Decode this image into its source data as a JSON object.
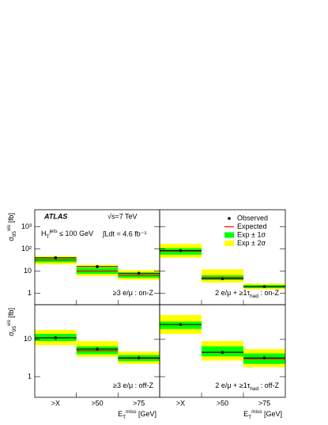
{
  "chart_data": [
    {
      "type": "band",
      "log_y": true,
      "ylim": [
        0.3,
        6000
      ],
      "yticks": [
        1,
        10,
        {
          "value": 100,
          "label": "10²"
        },
        {
          "value": 1000,
          "label": "10³"
        }
      ],
      "y_label": {
        "pre": "σ",
        "sub": "95",
        "sup": "vis",
        "post": " [fb]"
      },
      "experiment": "ATLAS",
      "energy": "√s=7 TeV",
      "lumi": "∫Ldt = 4.6 fb⁻¹",
      "selection": {
        "pre": "H",
        "sub": "T",
        "sup": "jets",
        "post": " ≤ 100 GeV"
      },
      "label": {
        "pre": "≥3 e/μ : on-Z"
      },
      "observed": [
        40,
        16,
        8
      ],
      "expected": [
        32,
        10,
        6.5
      ],
      "band_1sigma": [
        [
          25,
          40
        ],
        [
          7.5,
          14
        ],
        [
          5,
          8.5
        ]
      ],
      "band_2sigma": [
        [
          20,
          48
        ],
        [
          6,
          19
        ],
        [
          4,
          11
        ]
      ]
    },
    {
      "type": "band",
      "log_y": true,
      "ylim": [
        0.3,
        6000
      ],
      "label": {
        "pre": "2 e/μ + ≥1τ",
        "sub": "had",
        "post": " : on-Z"
      },
      "legend_position": "upper right",
      "legend": [
        {
          "name": "Observed",
          "color": "#000000"
        },
        {
          "name": "Expected",
          "color": "#ff0000"
        },
        {
          "name": "Exp ± 1σ",
          "color": "#00ff00"
        },
        {
          "name": "Exp ± 2σ",
          "color": "#ffff00"
        }
      ],
      "observed": [
        85,
        4.5,
        2
      ],
      "expected": [
        80,
        5,
        2
      ],
      "band_1sigma": [
        [
          55,
          110
        ],
        [
          4,
          6.5
        ],
        [
          1.7,
          2.3
        ]
      ],
      "band_2sigma": [
        [
          40,
          170
        ],
        [
          3,
          12
        ],
        [
          1.5,
          2.7
        ]
      ]
    },
    {
      "type": "band",
      "log_y": true,
      "ylim": [
        0.28,
        85
      ],
      "yticks": [
        1,
        10
      ],
      "y_label": {
        "pre": "σ",
        "sub": "95",
        "sup": "vis",
        "post": " [fb]"
      },
      "label": {
        "pre": "≥3 e/μ : off-Z"
      },
      "categories": [
        ">X",
        ">50",
        ">75"
      ],
      "x_label": {
        "pre": "E",
        "sub": "T",
        "sup": "miss",
        "post": " [GeV]"
      },
      "observed": [
        11,
        5.5,
        3.2
      ],
      "expected": [
        11,
        5,
        3.1
      ],
      "band_1sigma": [
        [
          9,
          14
        ],
        [
          4,
          6.5
        ],
        [
          2.6,
          3.8
        ]
      ],
      "band_2sigma": [
        [
          7,
          18
        ],
        [
          3.4,
          9
        ],
        [
          2.2,
          4.7
        ]
      ]
    },
    {
      "type": "band",
      "log_y": true,
      "ylim": [
        0.28,
        85
      ],
      "label": {
        "pre": "2 e/μ + ≥1τ",
        "sub": "had",
        "post": " : off-Z"
      },
      "categories": [
        ">X",
        ">50",
        ">75"
      ],
      "x_label": {
        "pre": "E",
        "sub": "T",
        "sup": "miss",
        "post": " [GeV]"
      },
      "observed": [
        25,
        4.5,
        3.2
      ],
      "expected": [
        25,
        4.5,
        3
      ],
      "band_1sigma": [
        [
          19,
          30
        ],
        [
          3.5,
          6.5
        ],
        [
          2.2,
          4.2
        ]
      ],
      "band_2sigma": [
        [
          14,
          45
        ],
        [
          2.7,
          9
        ],
        [
          1.8,
          5.5
        ]
      ]
    }
  ]
}
